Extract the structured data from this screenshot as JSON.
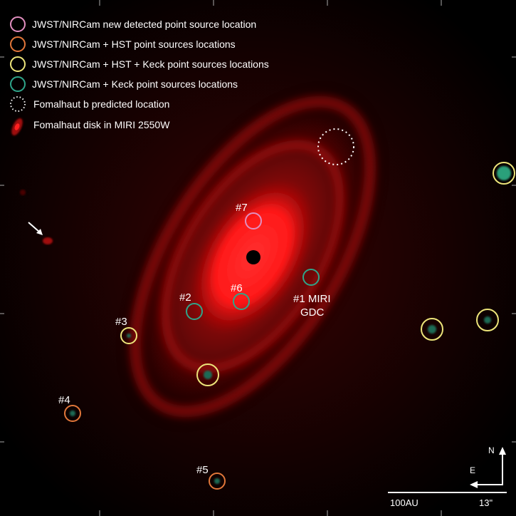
{
  "legend": {
    "items": [
      {
        "label": "JWST/NIRCam new detected point source location",
        "color": "#e28fc0",
        "style": "circle"
      },
      {
        "label": "JWST/NIRCam + HST point sources locations",
        "color": "#e2773a",
        "style": "circle"
      },
      {
        "label": "JWST/NIRCam + HST + Keck point sources locations",
        "color": "#ede57a",
        "style": "circle"
      },
      {
        "label": "JWST/NIRCam + Keck point sources locations",
        "color": "#2fa58a",
        "style": "circle"
      },
      {
        "label": "Fomalhaut b predicted location",
        "color": "#ffffff",
        "style": "dotted-circle"
      },
      {
        "label": "Fomalhaut disk in MIRI 2550W",
        "color": "#e01010",
        "style": "disk"
      }
    ]
  },
  "sources": {
    "s7": "#7",
    "s6": "#6",
    "s2": "#2",
    "s3": "#3",
    "s4": "#4",
    "s5": "#5",
    "s1_line1": "#1 MIRI",
    "s1_line2": "GDC"
  },
  "compass": {
    "north": "N",
    "east": "E"
  },
  "scale_bar": {
    "physical": "100AU",
    "angular": "13\""
  },
  "colors": {
    "disk": "#ff1a1a",
    "background": "#000000"
  }
}
